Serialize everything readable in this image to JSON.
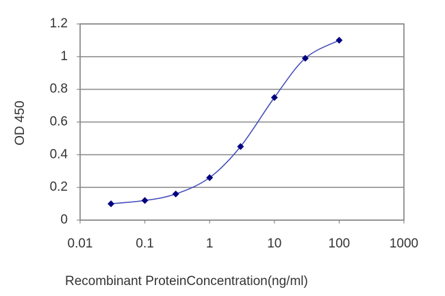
{
  "chart_data": {
    "type": "line",
    "x_label": "Recombinant ProteinConcentration(ng/ml)",
    "y_label": "OD 450",
    "x": [
      0.03,
      0.1,
      0.3,
      1,
      3,
      10,
      30,
      100
    ],
    "values": [
      0.1,
      0.12,
      0.16,
      0.26,
      0.45,
      0.75,
      0.99,
      1.1
    ],
    "color": "#000080",
    "line_color": "#3f48b8",
    "x_log": true,
    "xlim": [
      0.01,
      1000
    ],
    "xticks": [
      0.01,
      0.1,
      1,
      10,
      100,
      1000
    ],
    "ylim": [
      0,
      1.2
    ],
    "yticks": [
      0,
      0.2,
      0.4,
      0.6,
      0.8,
      1,
      1.2
    ],
    "grid": true
  }
}
